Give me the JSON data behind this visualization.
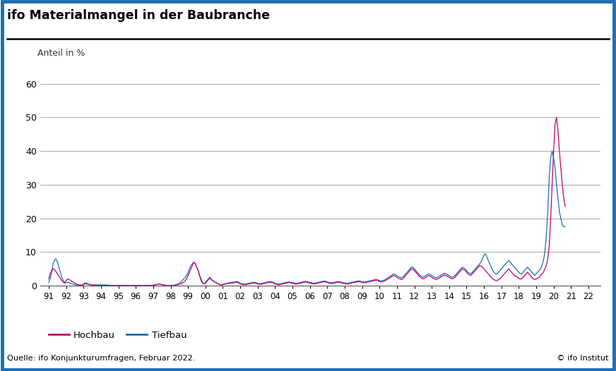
{
  "title": "ifo Materialmangel in der Baubranche",
  "ylabel": "Anteil in %",
  "source": "Quelle: ifo Konjunkturumfragen, Februar 2022.",
  "copyright": "© ifo Institut",
  "legend_hochbau": "Hochbau",
  "legend_tiefbau": "Tiefbau",
  "hochbau_color": "#c0006a",
  "tiefbau_color": "#1c6eb4",
  "background_color": "#ffffff",
  "border_color": "#1c6eb4",
  "ylim": [
    0,
    65
  ],
  "yticks": [
    0,
    10,
    20,
    30,
    40,
    50,
    60
  ],
  "xtick_labels": [
    "91",
    "92",
    "93",
    "94",
    "95",
    "96",
    "97",
    "98",
    "99",
    "00",
    "01",
    "02",
    "03",
    "04",
    "05",
    "06",
    "07",
    "08",
    "09",
    "10",
    "11",
    "12",
    "13",
    "14",
    "15",
    "16",
    "17",
    "18",
    "19",
    "20",
    "21",
    "22"
  ],
  "hochbau": [
    2.0,
    3.5,
    4.5,
    5.0,
    4.8,
    4.2,
    3.5,
    2.8,
    2.2,
    1.5,
    1.0,
    0.8,
    1.5,
    2.0,
    1.8,
    1.6,
    1.2,
    1.0,
    0.8,
    0.5,
    0.3,
    0.2,
    0.1,
    0.1,
    0.5,
    0.8,
    0.7,
    0.5,
    0.4,
    0.3,
    0.2,
    0.2,
    0.1,
    0.1,
    0.1,
    0.1,
    0.1,
    0.1,
    0.1,
    0.1,
    0.1,
    0.1,
    0.1,
    0.0,
    0.0,
    0.0,
    0.0,
    0.0,
    0.0,
    0.0,
    0.0,
    0.0,
    0.0,
    0.0,
    0.0,
    0.0,
    0.0,
    0.0,
    0.0,
    0.0,
    0.0,
    0.0,
    0.0,
    0.0,
    0.0,
    0.0,
    0.0,
    0.0,
    0.0,
    0.0,
    0.0,
    0.0,
    0.1,
    0.2,
    0.3,
    0.4,
    0.5,
    0.4,
    0.3,
    0.2,
    0.1,
    0.0,
    0.0,
    0.0,
    0.0,
    0.0,
    0.0,
    0.1,
    0.2,
    0.3,
    0.4,
    0.5,
    0.8,
    1.0,
    1.5,
    2.0,
    3.0,
    4.0,
    5.0,
    6.0,
    7.0,
    6.5,
    5.5,
    4.5,
    3.0,
    2.0,
    1.0,
    0.5,
    0.8,
    1.2,
    1.8,
    2.2,
    1.8,
    1.5,
    1.2,
    1.0,
    0.8,
    0.5,
    0.3,
    0.2,
    0.3,
    0.4,
    0.5,
    0.6,
    0.7,
    0.8,
    0.8,
    0.8,
    0.9,
    1.0,
    1.0,
    0.8,
    0.5,
    0.4,
    0.3,
    0.3,
    0.3,
    0.4,
    0.5,
    0.6,
    0.7,
    0.8,
    0.8,
    0.7,
    0.5,
    0.4,
    0.4,
    0.5,
    0.6,
    0.7,
    0.8,
    0.9,
    1.0,
    1.0,
    0.9,
    0.8,
    0.5,
    0.4,
    0.3,
    0.3,
    0.4,
    0.5,
    0.6,
    0.7,
    0.8,
    0.9,
    0.9,
    0.8,
    0.7,
    0.6,
    0.5,
    0.5,
    0.6,
    0.7,
    0.8,
    0.9,
    1.0,
    1.1,
    1.0,
    0.9,
    0.8,
    0.7,
    0.6,
    0.5,
    0.6,
    0.7,
    0.8,
    0.9,
    1.0,
    1.1,
    1.2,
    1.1,
    0.9,
    0.8,
    0.7,
    0.6,
    0.7,
    0.8,
    0.9,
    1.0,
    1.0,
    0.9,
    0.8,
    0.7,
    0.6,
    0.5,
    0.5,
    0.6,
    0.7,
    0.8,
    0.9,
    1.0,
    1.1,
    1.2,
    1.2,
    1.1,
    1.0,
    0.9,
    0.9,
    1.0,
    1.1,
    1.2,
    1.3,
    1.4,
    1.5,
    1.6,
    1.6,
    1.5,
    1.2,
    1.1,
    1.2,
    1.3,
    1.5,
    1.8,
    2.0,
    2.3,
    2.6,
    2.9,
    3.0,
    2.8,
    2.5,
    2.2,
    2.0,
    1.8,
    2.0,
    2.5,
    3.0,
    3.5,
    4.0,
    4.5,
    5.0,
    5.0,
    4.5,
    4.0,
    3.5,
    3.0,
    2.5,
    2.2,
    2.0,
    2.2,
    2.5,
    2.8,
    3.0,
    2.8,
    2.5,
    2.2,
    2.0,
    1.8,
    2.0,
    2.2,
    2.5,
    2.8,
    3.0,
    3.2,
    3.0,
    2.8,
    2.5,
    2.2,
    2.0,
    2.2,
    2.5,
    3.0,
    3.5,
    4.0,
    4.5,
    5.0,
    4.8,
    4.5,
    4.0,
    3.5,
    3.2,
    3.0,
    3.5,
    4.0,
    4.5,
    5.0,
    5.5,
    6.0,
    5.8,
    5.5,
    5.0,
    4.5,
    4.0,
    3.5,
    3.0,
    2.5,
    2.0,
    1.8,
    1.5,
    1.5,
    1.8,
    2.0,
    2.5,
    3.0,
    3.5,
    4.0,
    4.5,
    5.0,
    4.5,
    4.0,
    3.5,
    3.0,
    2.8,
    2.5,
    2.2,
    2.0,
    2.0,
    2.5,
    3.0,
    3.5,
    4.0,
    3.5,
    3.0,
    2.5,
    2.0,
    1.8,
    2.0,
    2.2,
    2.5,
    3.0,
    3.5,
    4.0,
    5.0,
    6.0,
    8.0,
    12.0,
    20.0,
    30.0,
    40.0,
    48.0,
    50.0,
    46.0,
    40.0,
    35.0,
    30.0,
    26.0,
    23.5
  ],
  "tiefbau": [
    1.0,
    2.0,
    4.0,
    6.5,
    7.5,
    8.0,
    7.0,
    5.5,
    4.0,
    2.5,
    1.5,
    1.0,
    0.8,
    1.0,
    0.9,
    0.7,
    0.5,
    0.4,
    0.3,
    0.2,
    0.2,
    0.2,
    0.2,
    0.2,
    0.3,
    0.5,
    0.5,
    0.4,
    0.3,
    0.2,
    0.2,
    0.2,
    0.2,
    0.2,
    0.2,
    0.2,
    0.2,
    0.2,
    0.2,
    0.2,
    0.2,
    0.1,
    0.1,
    0.1,
    0.1,
    0.1,
    0.1,
    0.1,
    0.1,
    0.1,
    0.1,
    0.1,
    0.1,
    0.1,
    0.1,
    0.1,
    0.1,
    0.1,
    0.1,
    0.1,
    0.1,
    0.1,
    0.1,
    0.1,
    0.1,
    0.1,
    0.1,
    0.1,
    0.1,
    0.1,
    0.1,
    0.1,
    0.1,
    0.2,
    0.3,
    0.4,
    0.5,
    0.4,
    0.3,
    0.2,
    0.2,
    0.1,
    0.1,
    0.1,
    0.1,
    0.1,
    0.1,
    0.2,
    0.3,
    0.5,
    0.7,
    1.0,
    1.5,
    2.0,
    2.5,
    3.0,
    4.0,
    5.0,
    6.0,
    6.5,
    7.0,
    6.5,
    5.5,
    4.5,
    3.0,
    1.5,
    0.8,
    0.5,
    1.0,
    1.5,
    2.0,
    2.5,
    2.0,
    1.5,
    1.2,
    1.0,
    0.8,
    0.5,
    0.3,
    0.2,
    0.4,
    0.5,
    0.6,
    0.7,
    0.8,
    0.9,
    1.0,
    1.0,
    1.1,
    1.2,
    1.2,
    1.0,
    0.7,
    0.6,
    0.5,
    0.5,
    0.5,
    0.6,
    0.7,
    0.8,
    0.9,
    1.0,
    1.0,
    0.9,
    0.7,
    0.6,
    0.6,
    0.7,
    0.8,
    0.9,
    1.0,
    1.1,
    1.2,
    1.2,
    1.1,
    1.0,
    0.7,
    0.6,
    0.5,
    0.5,
    0.6,
    0.7,
    0.8,
    0.9,
    1.0,
    1.1,
    1.1,
    1.0,
    0.9,
    0.8,
    0.7,
    0.7,
    0.8,
    0.9,
    1.0,
    1.1,
    1.2,
    1.3,
    1.2,
    1.1,
    1.0,
    0.9,
    0.8,
    0.7,
    0.8,
    0.9,
    1.0,
    1.1,
    1.2,
    1.3,
    1.4,
    1.3,
    1.1,
    1.0,
    0.9,
    0.8,
    0.9,
    1.0,
    1.1,
    1.2,
    1.2,
    1.1,
    1.0,
    0.9,
    0.8,
    0.7,
    0.7,
    0.8,
    0.9,
    1.0,
    1.1,
    1.2,
    1.3,
    1.4,
    1.4,
    1.3,
    1.2,
    1.1,
    1.1,
    1.2,
    1.3,
    1.4,
    1.5,
    1.6,
    1.7,
    1.8,
    1.8,
    1.7,
    1.5,
    1.4,
    1.5,
    1.6,
    1.8,
    2.1,
    2.4,
    2.7,
    3.0,
    3.3,
    3.5,
    3.3,
    3.0,
    2.7,
    2.5,
    2.3,
    2.5,
    3.0,
    3.5,
    4.0,
    4.5,
    5.0,
    5.5,
    5.5,
    5.0,
    4.5,
    4.0,
    3.5,
    3.0,
    2.8,
    2.5,
    2.8,
    3.0,
    3.3,
    3.5,
    3.3,
    3.0,
    2.7,
    2.5,
    2.3,
    2.5,
    2.8,
    3.0,
    3.3,
    3.5,
    3.7,
    3.5,
    3.3,
    3.0,
    2.7,
    2.5,
    2.7,
    3.0,
    3.5,
    4.0,
    4.5,
    5.0,
    5.5,
    5.3,
    5.0,
    4.5,
    4.0,
    3.7,
    3.5,
    4.0,
    4.5,
    5.0,
    5.5,
    6.0,
    6.5,
    7.0,
    8.0,
    9.0,
    9.5,
    8.5,
    7.5,
    6.5,
    5.5,
    4.5,
    4.0,
    3.5,
    3.5,
    4.0,
    4.5,
    5.0,
    5.5,
    6.0,
    6.5,
    7.0,
    7.5,
    7.0,
    6.5,
    6.0,
    5.5,
    5.0,
    4.5,
    4.0,
    3.5,
    3.5,
    4.0,
    4.5,
    5.0,
    5.5,
    5.0,
    4.5,
    4.0,
    3.5,
    3.0,
    3.5,
    4.0,
    4.5,
    5.0,
    6.0,
    7.5,
    10.0,
    15.0,
    22.0,
    32.0,
    38.0,
    40.0,
    38.0,
    35.0,
    30.0,
    26.0,
    22.0,
    20.0,
    18.0,
    17.5,
    17.5
  ]
}
